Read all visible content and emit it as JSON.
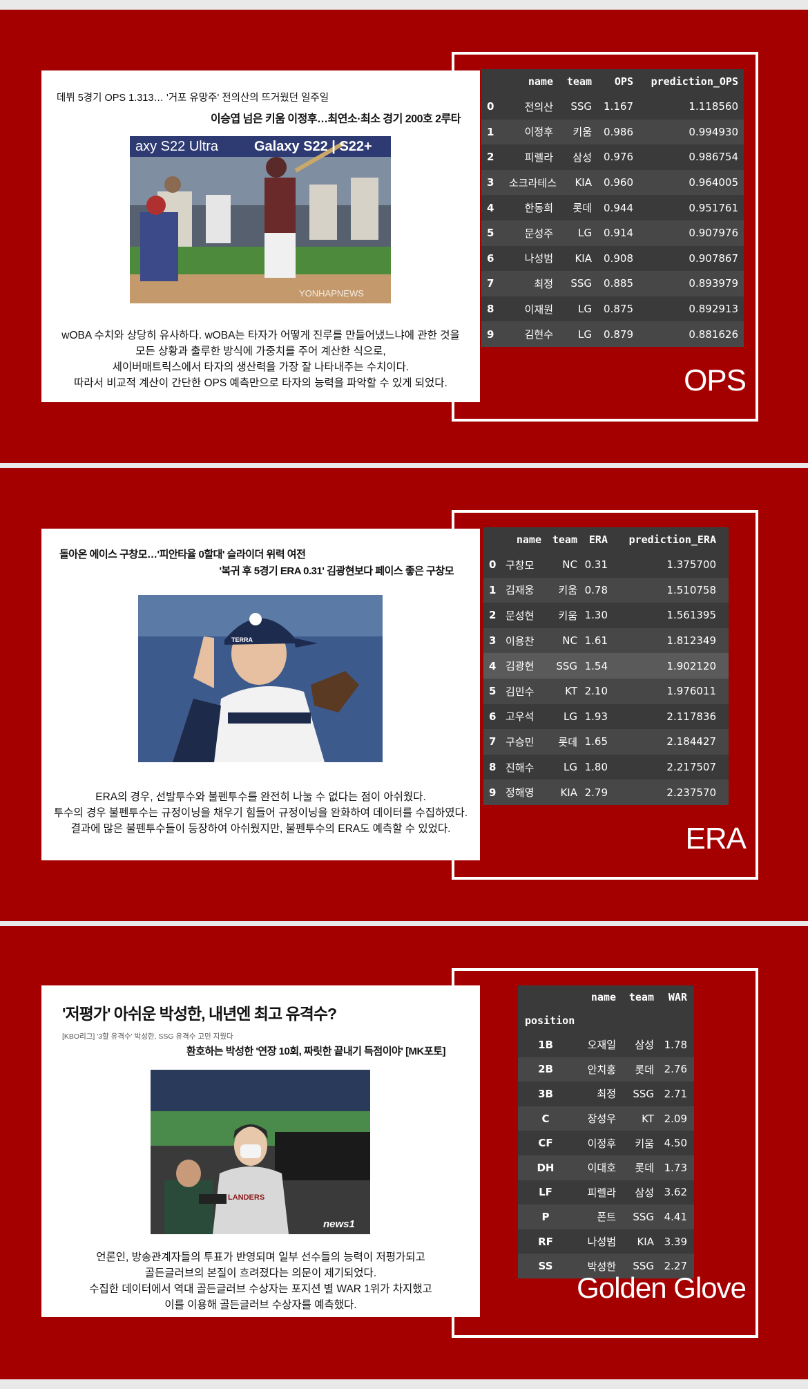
{
  "ops": {
    "headline1": "데뷔 5경기 OPS 1.313… '거포 유망주' 전의산의 뜨거웠던 일주일",
    "headline2": "이승엽 넘은 키움 이정후…최연소·최소 경기 200호 2루타",
    "photo_watermark": "YONHAPNEWS",
    "banner1": "axy S22 Ultra",
    "banner2": "Galaxy S22 | S22+",
    "caption": [
      "wOBA 수치와 상당히 유사하다. wOBA는 타자가 어떻게 진루를 만들어냈느냐에 관한 것을",
      "모든 상황과 출루한 방식에 가중치를 주어 계산한 식으로,",
      "세이버매트릭스에서 타자의 생산력을 가장 잘 나타내주는 수치이다.",
      "따라서 비교적 계산이 간단한 OPS 예측만으로 타자의 능력을 파악할 수 있게 되었다."
    ],
    "label": "OPS",
    "columns": [
      "name",
      "team",
      "OPS",
      "prediction_OPS"
    ],
    "rows": [
      [
        "0",
        "전의산",
        "SSG",
        "1.167",
        "1.118560"
      ],
      [
        "1",
        "이정후",
        "키움",
        "0.986",
        "0.994930"
      ],
      [
        "2",
        "피렐라",
        "삼성",
        "0.976",
        "0.986754"
      ],
      [
        "3",
        "소크라테스",
        "KIA",
        "0.960",
        "0.964005"
      ],
      [
        "4",
        "한동희",
        "롯데",
        "0.944",
        "0.951761"
      ],
      [
        "5",
        "문성주",
        "LG",
        "0.914",
        "0.907976"
      ],
      [
        "6",
        "나성범",
        "KIA",
        "0.908",
        "0.907867"
      ],
      [
        "7",
        "최정",
        "SSG",
        "0.885",
        "0.893979"
      ],
      [
        "8",
        "이재원",
        "LG",
        "0.875",
        "0.892913"
      ],
      [
        "9",
        "김현수",
        "LG",
        "0.879",
        "0.881626"
      ]
    ]
  },
  "era": {
    "headline1": "돌아온 에이스 구창모…'피안타율 0할대' 슬라이더 위력 여전",
    "headline2": "'복귀 후 5경기 ERA 0.31' 김광현보다 페이스 좋은 구창모",
    "cap_text": "TERRA",
    "caption": [
      "ERA의 경우, 선발투수와 불펜투수를 완전히 나눌 수 없다는 점이 아쉬웠다.",
      "투수의 경우 불펜투수는 규정이닝을 채우기 힘들어 규정이닝을 완화하여 데이터를 수집하였다.",
      "결과에 많은 불펜투수들이 등장하여 아쉬웠지만, 불펜투수의 ERA도 예측할 수 있었다."
    ],
    "label": "ERA",
    "columns": [
      "name",
      "team",
      "ERA",
      "prediction_ERA"
    ],
    "rows": [
      [
        "0",
        "구창모",
        "NC",
        "0.31",
        "1.375700"
      ],
      [
        "1",
        "김재웅",
        "키움",
        "0.78",
        "1.510758"
      ],
      [
        "2",
        "문성현",
        "키움",
        "1.30",
        "1.561395"
      ],
      [
        "3",
        "이용찬",
        "NC",
        "1.61",
        "1.812349"
      ],
      [
        "4",
        "김광현",
        "SSG",
        "1.54",
        "1.902120"
      ],
      [
        "5",
        "김민수",
        "KT",
        "2.10",
        "1.976011"
      ],
      [
        "6",
        "고우석",
        "LG",
        "1.93",
        "2.117836"
      ],
      [
        "7",
        "구승민",
        "롯데",
        "1.65",
        "2.184427"
      ],
      [
        "8",
        "진해수",
        "LG",
        "1.80",
        "2.217507"
      ],
      [
        "9",
        "정해영",
        "KIA",
        "2.79",
        "2.237570"
      ]
    ]
  },
  "gg": {
    "headline1": "'저평가' 아쉬운 박성한, 내년엔 최고 유격수?",
    "subhead": "[KBO리그] '3할 유격수' 박성한, SSG 유격수 고민 지웠다",
    "headline2": "환호하는 박성한 '연장 10회, 짜릿한 끝내기 득점이야' [MK포토]",
    "photo_watermark": "news1",
    "jersey_text": "LANDERS",
    "caption": [
      "언론인, 방송관계자들의 투표가 반영되며 일부 선수들의 능력이 저평가되고",
      "골든글러브의 본질이 흐려졌다는 의문이 제기되었다.",
      "수집한 데이터에서 역대 골든글러브 수상자는 포지션 별 WAR 1위가 차지했고",
      "이를 이용해 골든글러브 수상자를 예측했다."
    ],
    "label": "Golden Glove",
    "columns": [
      "name",
      "team",
      "WAR"
    ],
    "index_name": "position",
    "rows": [
      [
        "1B",
        "오재일",
        "삼성",
        "1.78"
      ],
      [
        "2B",
        "안치홍",
        "롯데",
        "2.76"
      ],
      [
        "3B",
        "최정",
        "SSG",
        "2.71"
      ],
      [
        "C",
        "장성우",
        "KT",
        "2.09"
      ],
      [
        "CF",
        "이정후",
        "키움",
        "4.50"
      ],
      [
        "DH",
        "이대호",
        "롯데",
        "1.73"
      ],
      [
        "LF",
        "피렐라",
        "삼성",
        "3.62"
      ],
      [
        "P",
        "폰트",
        "SSG",
        "4.41"
      ],
      [
        "RF",
        "나성범",
        "KIA",
        "3.39"
      ],
      [
        "SS",
        "박성한",
        "SSG",
        "2.27"
      ]
    ]
  }
}
